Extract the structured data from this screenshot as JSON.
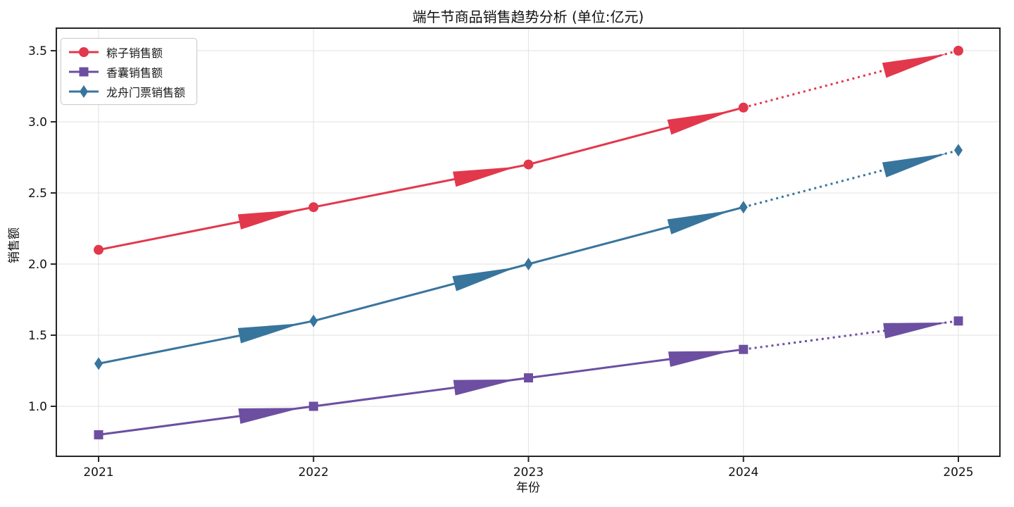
{
  "chart_data": {
    "type": "line",
    "title": "端午节商品销售趋势分析 (单位:亿元)",
    "xlabel": "年份",
    "ylabel": "销售额",
    "x": [
      2021,
      2022,
      2023,
      2024,
      2025
    ],
    "x_tick_labels": [
      "2021",
      "2022",
      "2023",
      "2024",
      "2025"
    ],
    "yticks": [
      1.0,
      1.5,
      2.0,
      2.5,
      3.0,
      3.5
    ],
    "y_tick_labels": [
      "1.0",
      "1.5",
      "2.0",
      "2.5",
      "3.0",
      "3.5"
    ],
    "xlim": [
      2020.8,
      2025.2
    ],
    "ylim": [
      0.65,
      3.66
    ],
    "grid": true,
    "legend_position": "upper-left",
    "final_segment_linestyle": "dotted",
    "segment_arrows": true,
    "series": [
      {
        "name": "粽子销售额",
        "marker": "circle",
        "color": "#e2384c",
        "values": [
          2.1,
          2.4,
          2.7,
          3.1,
          3.5
        ]
      },
      {
        "name": "香囊销售额",
        "marker": "square",
        "color": "#6c4fa1",
        "values": [
          0.8,
          1.0,
          1.2,
          1.4,
          1.6
        ]
      },
      {
        "name": "龙舟门票销售额",
        "marker": "diamond",
        "color": "#38759d",
        "values": [
          1.3,
          1.6,
          2.0,
          2.4,
          2.8
        ]
      }
    ],
    "style": {
      "grid_color": "#e6e6e6",
      "spine_color": "#262626",
      "tick_label_color": "#111111"
    }
  }
}
